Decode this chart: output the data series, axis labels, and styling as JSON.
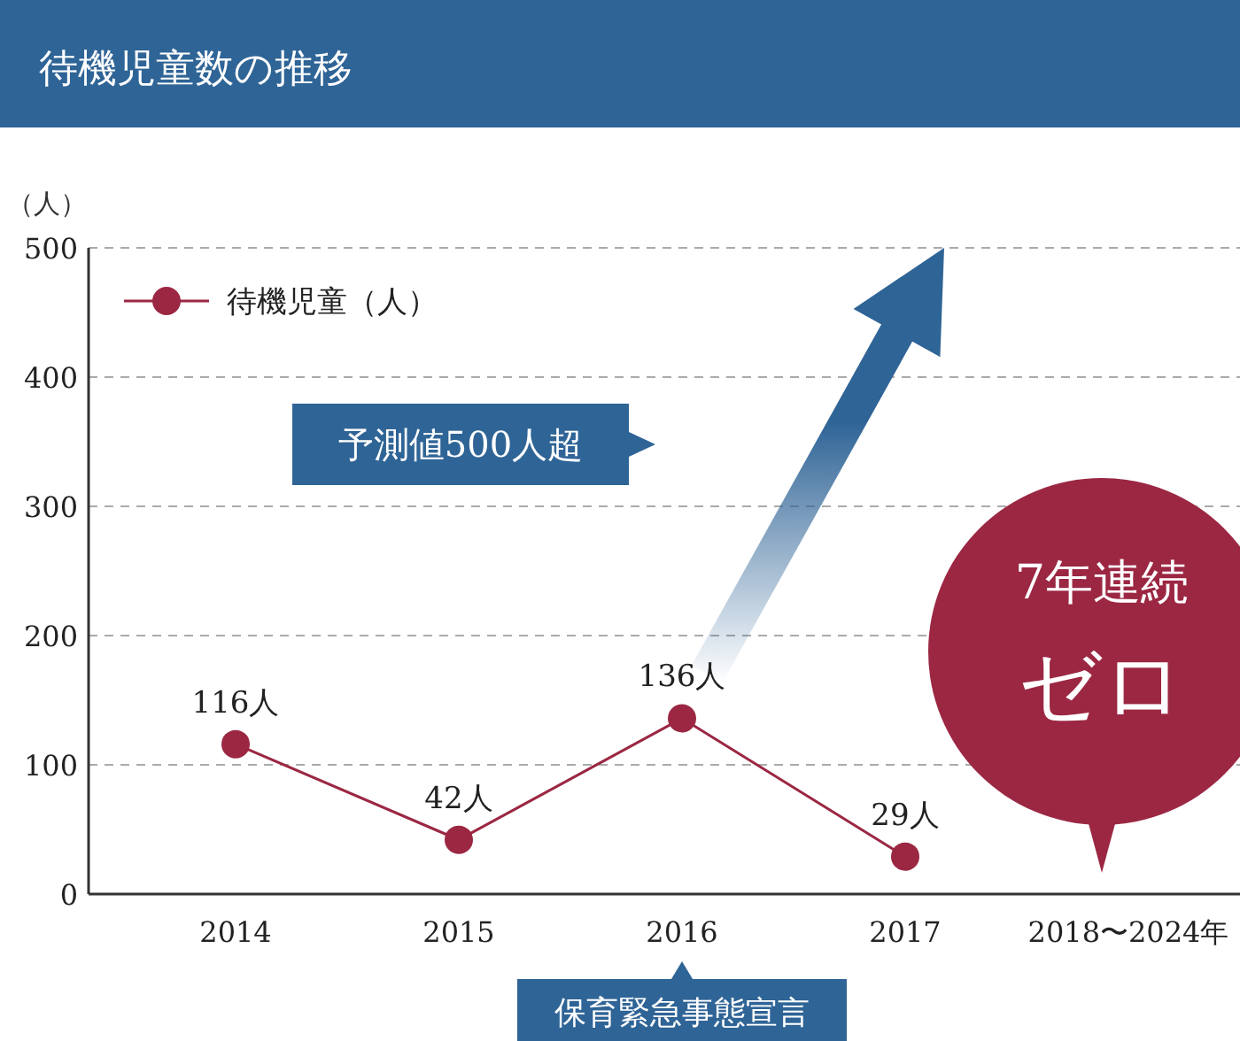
{
  "chart_data": {
    "type": "line",
    "title": "待機児童数の推移",
    "ylabel": "（人）",
    "categories": [
      "2014",
      "2015",
      "2016",
      "2017",
      "2018〜2024年"
    ],
    "series": [
      {
        "name": "待機児童（人）",
        "color": "#9b2743",
        "values": [
          116,
          42,
          136,
          29,
          null
        ],
        "value_labels": [
          "116人",
          "42人",
          "136人",
          "29人",
          null
        ]
      }
    ],
    "ylim": [
      0,
      500
    ],
    "yticks": [
      0,
      100,
      200,
      300,
      400,
      500
    ],
    "grid": "y",
    "legend": "top left",
    "marker": "circle",
    "line_style": "solid",
    "annotations": [
      "予測値500人超",
      "7年連続",
      "ゼロ",
      "保育緊急事態宣言"
    ]
  }
}
